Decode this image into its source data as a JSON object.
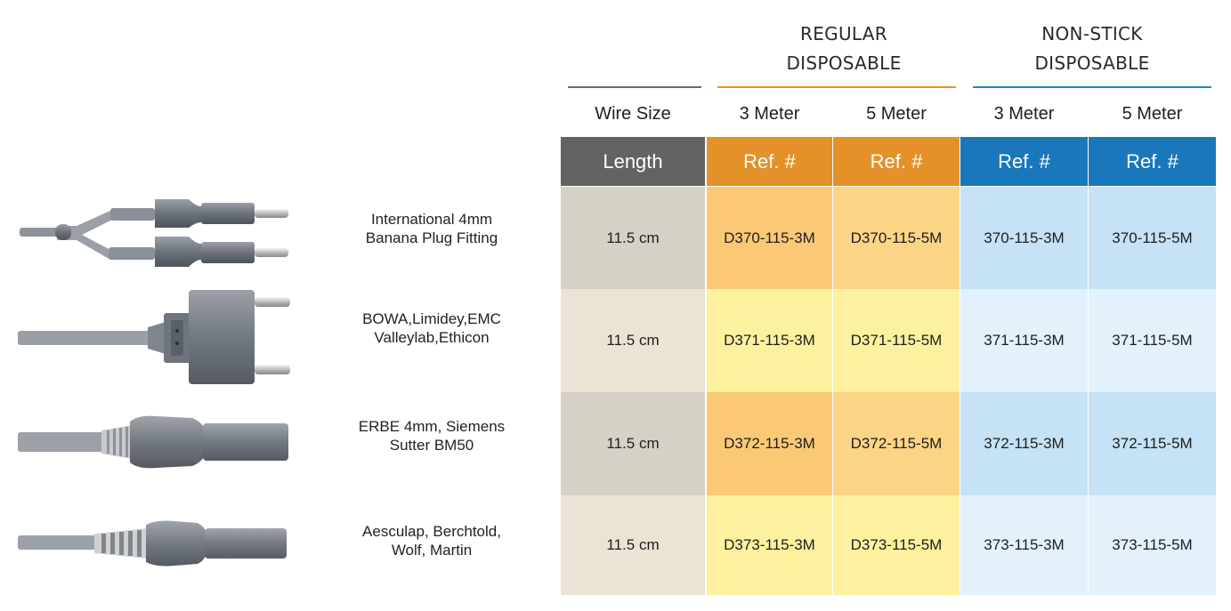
{
  "groups": {
    "regular": {
      "title": "REGULAR\nDISPOSABLE",
      "color": "#ee8f24"
    },
    "nonstick": {
      "title": "NON-STICK\nDISPOSABLE",
      "color": "#1f86c6"
    },
    "wire_rule_color": "#6a6a6a"
  },
  "columns": {
    "wire_size": "Wire Size",
    "reg_3m": "3 Meter",
    "reg_5m": "5 Meter",
    "ns_3m": "3 Meter",
    "ns_5m": "5 Meter"
  },
  "header_bar": {
    "length": "Length",
    "ref_reg_3m": "Ref. #",
    "ref_reg_5m": "Ref. #",
    "ref_ns_3m": "Ref. #",
    "ref_ns_5m": "Ref. #"
  },
  "colors": {
    "length_header": "#636363",
    "regular_header": "#e4912a",
    "nonstick_header": "#1a77bb"
  },
  "rows": [
    {
      "description": "International 4mm\nBanana Plug Fitting",
      "length": "11.5 cm",
      "reg_3m": "D370-115-3M",
      "reg_5m": "D370-115-5M",
      "ns_3m": "370-115-3M",
      "ns_5m": "370-115-5M",
      "plug_icon": "dual-banana-plug-icon"
    },
    {
      "description": "BOWA,Limidey,EMC\nValleylab,Ethicon",
      "length": "11.5 cm",
      "reg_3m": "D371-115-3M",
      "reg_5m": "D371-115-5M",
      "ns_3m": "371-115-3M",
      "ns_5m": "371-115-5M",
      "plug_icon": "bipolar-block-plug-icon"
    },
    {
      "description": "ERBE 4mm, Siemens\nSutter BM50",
      "length": "11.5 cm",
      "reg_3m": "D372-115-3M",
      "reg_5m": "D372-115-5M",
      "ns_3m": "372-115-3M",
      "ns_5m": "372-115-5M",
      "plug_icon": "erbe-connector-icon"
    },
    {
      "description": "Aesculap, Berchtold,\nWolf, Martin",
      "length": "11.5 cm",
      "reg_3m": "D373-115-3M",
      "reg_5m": "D373-115-5M",
      "ns_3m": "373-115-3M",
      "ns_5m": "373-115-5M",
      "plug_icon": "aesculap-connector-icon"
    }
  ]
}
